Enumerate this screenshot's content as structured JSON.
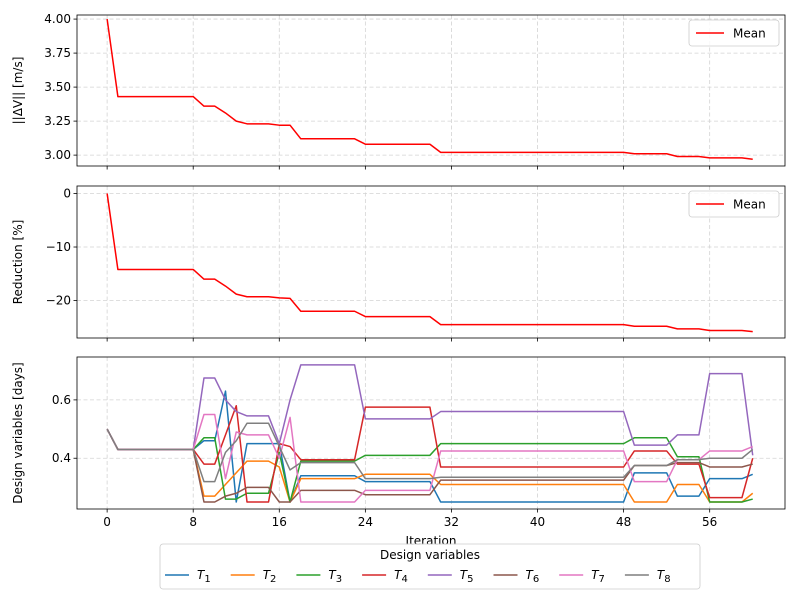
{
  "chart_data": [
    {
      "type": "line",
      "ylabel": "||ΔV|| [m/s]",
      "ylim": [
        2.92,
        4.03
      ],
      "yticks": [
        3.0,
        3.25,
        3.5,
        3.75,
        4.0
      ],
      "ytick_labels": [
        "3.00",
        "3.25",
        "3.50",
        "3.75",
        "4.00"
      ],
      "grid": true,
      "legend_position": "top-right",
      "series": [
        {
          "name": "Mean",
          "color": "#ff0000",
          "x": [
            0,
            1,
            2,
            3,
            4,
            5,
            6,
            7,
            8,
            9,
            10,
            11,
            12,
            13,
            14,
            15,
            16,
            17,
            18,
            19,
            20,
            21,
            22,
            23,
            24,
            25,
            26,
            27,
            28,
            29,
            30,
            31,
            32,
            33,
            34,
            35,
            36,
            37,
            38,
            39,
            40,
            41,
            42,
            43,
            44,
            45,
            46,
            47,
            48,
            49,
            50,
            51,
            52,
            53,
            54,
            55,
            56,
            57,
            58,
            59,
            60
          ],
          "values": [
            4.0,
            3.43,
            3.43,
            3.43,
            3.43,
            3.43,
            3.43,
            3.43,
            3.43,
            3.36,
            3.36,
            3.31,
            3.25,
            3.23,
            3.23,
            3.23,
            3.22,
            3.22,
            3.12,
            3.12,
            3.12,
            3.12,
            3.12,
            3.12,
            3.08,
            3.08,
            3.08,
            3.08,
            3.08,
            3.08,
            3.08,
            3.02,
            3.02,
            3.02,
            3.02,
            3.02,
            3.02,
            3.02,
            3.02,
            3.02,
            3.02,
            3.02,
            3.02,
            3.02,
            3.02,
            3.02,
            3.02,
            3.02,
            3.02,
            3.01,
            3.01,
            3.01,
            3.01,
            2.99,
            2.99,
            2.99,
            2.98,
            2.98,
            2.98,
            2.98,
            2.97
          ]
        }
      ]
    },
    {
      "type": "line",
      "ylabel": "Reduction [%]",
      "ylim": [
        -27,
        1.4
      ],
      "yticks": [
        -20,
        -10,
        0
      ],
      "ytick_labels": [
        "−20",
        "−10",
        "0"
      ],
      "grid": true,
      "legend_position": "top-right",
      "series": [
        {
          "name": "Mean",
          "color": "#ff0000",
          "x": [
            0,
            1,
            2,
            3,
            4,
            5,
            6,
            7,
            8,
            9,
            10,
            11,
            12,
            13,
            14,
            15,
            16,
            17,
            18,
            19,
            20,
            21,
            22,
            23,
            24,
            25,
            26,
            27,
            28,
            29,
            30,
            31,
            32,
            33,
            34,
            35,
            36,
            37,
            38,
            39,
            40,
            41,
            42,
            43,
            44,
            45,
            46,
            47,
            48,
            49,
            50,
            51,
            52,
            53,
            54,
            55,
            56,
            57,
            58,
            59,
            60
          ],
          "values": [
            0,
            -14.2,
            -14.2,
            -14.2,
            -14.2,
            -14.2,
            -14.2,
            -14.2,
            -14.2,
            -16,
            -16,
            -17.3,
            -18.8,
            -19.3,
            -19.3,
            -19.3,
            -19.5,
            -19.6,
            -22,
            -22,
            -22,
            -22,
            -22,
            -22,
            -23,
            -23,
            -23,
            -23,
            -23,
            -23,
            -23,
            -24.5,
            -24.5,
            -24.5,
            -24.5,
            -24.5,
            -24.5,
            -24.5,
            -24.5,
            -24.5,
            -24.5,
            -24.5,
            -24.5,
            -24.5,
            -24.5,
            -24.5,
            -24.5,
            -24.5,
            -24.5,
            -24.8,
            -24.8,
            -24.8,
            -24.8,
            -25.3,
            -25.3,
            -25.3,
            -25.6,
            -25.6,
            -25.6,
            -25.6,
            -25.8
          ]
        }
      ]
    },
    {
      "type": "line",
      "xlabel": "Iteration",
      "ylabel": "Design variables [days]",
      "xlim": [
        -2.8,
        63
      ],
      "ylim": [
        0.226,
        0.747
      ],
      "xticks": [
        0,
        8,
        16,
        24,
        32,
        40,
        48,
        56
      ],
      "xtick_labels": [
        "0",
        "8",
        "16",
        "24",
        "32",
        "40",
        "48",
        "56"
      ],
      "yticks": [
        0.4,
        0.6
      ],
      "ytick_labels": [
        "0.4",
        "0.6"
      ],
      "grid": true,
      "legend_title": "Design variables",
      "legend_position": "lower-center",
      "series": [
        {
          "name": "T",
          "sub": "1",
          "color": "#1f77b4",
          "x": [
            0,
            1,
            8,
            9,
            10,
            11,
            12,
            13,
            16,
            17,
            18,
            23,
            24,
            30,
            31,
            48,
            49,
            52,
            53,
            55,
            56,
            59,
            60
          ],
          "values": [
            0.5,
            0.43,
            0.43,
            0.46,
            0.46,
            0.63,
            0.25,
            0.45,
            0.45,
            0.25,
            0.34,
            0.34,
            0.32,
            0.32,
            0.25,
            0.25,
            0.35,
            0.35,
            0.27,
            0.27,
            0.33,
            0.33,
            0.345
          ]
        },
        {
          "name": "T",
          "sub": "2",
          "color": "#ff7f0e",
          "x": [
            0,
            1,
            8,
            9,
            10,
            13,
            15,
            16,
            17,
            18,
            23,
            24,
            30,
            31,
            48,
            49,
            52,
            53,
            55,
            56,
            59,
            60
          ],
          "values": [
            0.5,
            0.43,
            0.43,
            0.27,
            0.27,
            0.39,
            0.39,
            0.37,
            0.25,
            0.33,
            0.33,
            0.345,
            0.345,
            0.31,
            0.31,
            0.25,
            0.25,
            0.31,
            0.31,
            0.25,
            0.25,
            0.28
          ]
        },
        {
          "name": "T",
          "sub": "3",
          "color": "#2ca02c",
          "x": [
            0,
            1,
            8,
            9,
            10,
            11,
            12,
            13,
            15,
            16,
            17,
            18,
            23,
            24,
            30,
            31,
            48,
            49,
            52,
            53,
            55,
            56,
            59,
            60
          ],
          "values": [
            0.5,
            0.43,
            0.43,
            0.47,
            0.47,
            0.26,
            0.26,
            0.28,
            0.28,
            0.42,
            0.25,
            0.39,
            0.39,
            0.41,
            0.41,
            0.45,
            0.45,
            0.47,
            0.47,
            0.405,
            0.405,
            0.25,
            0.25,
            0.26
          ]
        },
        {
          "name": "T",
          "sub": "4",
          "color": "#d62728",
          "x": [
            0,
            1,
            8,
            9,
            10,
            12,
            13,
            15,
            16,
            17,
            18,
            23,
            24,
            30,
            31,
            48,
            49,
            52,
            53,
            55,
            56,
            59,
            60
          ],
          "values": [
            0.5,
            0.43,
            0.43,
            0.38,
            0.38,
            0.58,
            0.25,
            0.25,
            0.45,
            0.44,
            0.395,
            0.395,
            0.575,
            0.575,
            0.37,
            0.37,
            0.425,
            0.425,
            0.38,
            0.38,
            0.265,
            0.265,
            0.4
          ]
        },
        {
          "name": "T",
          "sub": "5",
          "color": "#9467bd",
          "x": [
            0,
            1,
            8,
            9,
            10,
            11,
            12,
            13,
            15,
            16,
            17,
            18,
            23,
            24,
            30,
            31,
            48,
            49,
            52,
            53,
            55,
            56,
            59,
            60
          ],
          "values": [
            0.5,
            0.43,
            0.43,
            0.675,
            0.675,
            0.6,
            0.56,
            0.545,
            0.545,
            0.45,
            0.6,
            0.72,
            0.72,
            0.535,
            0.535,
            0.56,
            0.56,
            0.445,
            0.445,
            0.48,
            0.48,
            0.69,
            0.69,
            0.41
          ]
        },
        {
          "name": "T",
          "sub": "6",
          "color": "#8c564b",
          "x": [
            0,
            1,
            8,
            9,
            10,
            11,
            12,
            13,
            15,
            16,
            17,
            18,
            23,
            24,
            30,
            31,
            48,
            49,
            52,
            53,
            55,
            56,
            59,
            60
          ],
          "values": [
            0.5,
            0.43,
            0.43,
            0.25,
            0.25,
            0.27,
            0.28,
            0.3,
            0.3,
            0.25,
            0.25,
            0.29,
            0.29,
            0.275,
            0.275,
            0.325,
            0.325,
            0.375,
            0.375,
            0.385,
            0.385,
            0.37,
            0.37,
            0.38
          ]
        },
        {
          "name": "T",
          "sub": "7",
          "color": "#e377c2",
          "x": [
            0,
            1,
            8,
            9,
            10,
            11,
            12,
            13,
            15,
            16,
            17,
            18,
            23,
            24,
            30,
            31,
            48,
            49,
            52,
            53,
            55,
            56,
            59,
            60
          ],
          "values": [
            0.5,
            0.43,
            0.43,
            0.55,
            0.55,
            0.33,
            0.49,
            0.48,
            0.48,
            0.4,
            0.54,
            0.25,
            0.25,
            0.29,
            0.29,
            0.425,
            0.425,
            0.32,
            0.32,
            0.395,
            0.395,
            0.425,
            0.425,
            0.44
          ]
        },
        {
          "name": "T",
          "sub": "8",
          "color": "#7f7f7f",
          "x": [
            0,
            1,
            8,
            9,
            10,
            11,
            12,
            13,
            15,
            16,
            17,
            18,
            23,
            24,
            30,
            31,
            48,
            49,
            52,
            53,
            55,
            56,
            59,
            60
          ],
          "values": [
            0.5,
            0.43,
            0.43,
            0.32,
            0.32,
            0.42,
            0.46,
            0.52,
            0.52,
            0.44,
            0.36,
            0.385,
            0.385,
            0.33,
            0.33,
            0.335,
            0.335,
            0.375,
            0.375,
            0.395,
            0.395,
            0.4,
            0.4,
            0.43
          ]
        }
      ]
    }
  ]
}
